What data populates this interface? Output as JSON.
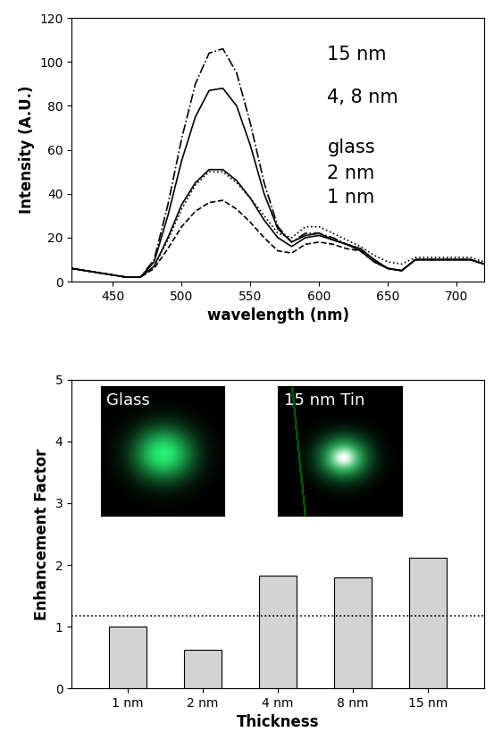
{
  "chart_data": [
    {
      "type": "line",
      "x_label": "wavelength (nm)",
      "y_label": "Intensity (A.U.)",
      "x": [
        420,
        430,
        440,
        450,
        460,
        470,
        480,
        490,
        500,
        510,
        520,
        530,
        540,
        550,
        560,
        570,
        580,
        590,
        600,
        610,
        620,
        630,
        640,
        650,
        660,
        670,
        680,
        690,
        700,
        710,
        720
      ],
      "xlim": [
        420,
        720
      ],
      "xticks": [
        450,
        500,
        550,
        600,
        650,
        700
      ],
      "ylim": [
        0,
        120
      ],
      "yticks": [
        0,
        20,
        40,
        60,
        80,
        100,
        120
      ],
      "series": [
        {
          "name": "15 nm",
          "color": "#000000",
          "line_style": "dashdot",
          "values": [
            6,
            5,
            4,
            3,
            2,
            2,
            10,
            35,
            65,
            90,
            104,
            106,
            95,
            72,
            45,
            25,
            18,
            22,
            22,
            20,
            17,
            15,
            10,
            6,
            5,
            10,
            10,
            10,
            10,
            10,
            8
          ]
        },
        {
          "name": "4, 8 nm",
          "color": "#000000",
          "line_style": "solid",
          "values": [
            6,
            5,
            4,
            3,
            2,
            2,
            9,
            30,
            55,
            75,
            87,
            88,
            80,
            62,
            40,
            24,
            18,
            21,
            22,
            19,
            17,
            14,
            9,
            6,
            5,
            10,
            10,
            10,
            10,
            10,
            8
          ]
        },
        {
          "name": "glass",
          "color": "#000000",
          "line_style": "solid",
          "values": [
            6,
            5,
            4,
            3,
            2,
            2,
            7,
            20,
            35,
            45,
            51,
            51,
            46,
            38,
            28,
            20,
            16,
            20,
            21,
            19,
            17,
            15,
            10,
            6,
            5,
            10,
            10,
            10,
            10,
            10,
            8
          ]
        },
        {
          "name": "2 nm",
          "color": "#000000",
          "line_style": "dotted",
          "values": [
            6,
            5,
            4,
            3,
            2,
            2,
            7,
            19,
            33,
            44,
            50,
            50,
            45,
            38,
            30,
            22,
            20,
            25,
            25,
            22,
            19,
            16,
            12,
            9,
            8,
            11,
            11,
            11,
            11,
            11,
            9
          ]
        },
        {
          "name": "1 nm",
          "color": "#000000",
          "line_style": "dashed",
          "values": [
            6,
            5,
            4,
            3,
            2,
            2,
            6,
            15,
            25,
            32,
            36,
            37,
            33,
            27,
            20,
            14,
            13,
            17,
            18,
            17,
            15,
            14,
            9,
            6,
            5,
            10,
            10,
            10,
            10,
            10,
            8
          ]
        }
      ]
    },
    {
      "type": "bar",
      "x_label": "Thickness",
      "y_label": "Enhancement Factor",
      "categories": [
        "1 nm",
        "2 nm",
        "4 nm",
        "8 nm",
        "15 nm"
      ],
      "values": [
        1.0,
        0.62,
        1.83,
        1.8,
        2.12
      ],
      "color": "#d3d3d3",
      "ylim": [
        0,
        5
      ],
      "yticks": [
        0,
        1,
        2,
        3,
        4,
        5
      ],
      "threshold": 1.17,
      "insets": [
        {
          "label": "Glass"
        },
        {
          "label": "15 nm Tin"
        }
      ]
    }
  ]
}
